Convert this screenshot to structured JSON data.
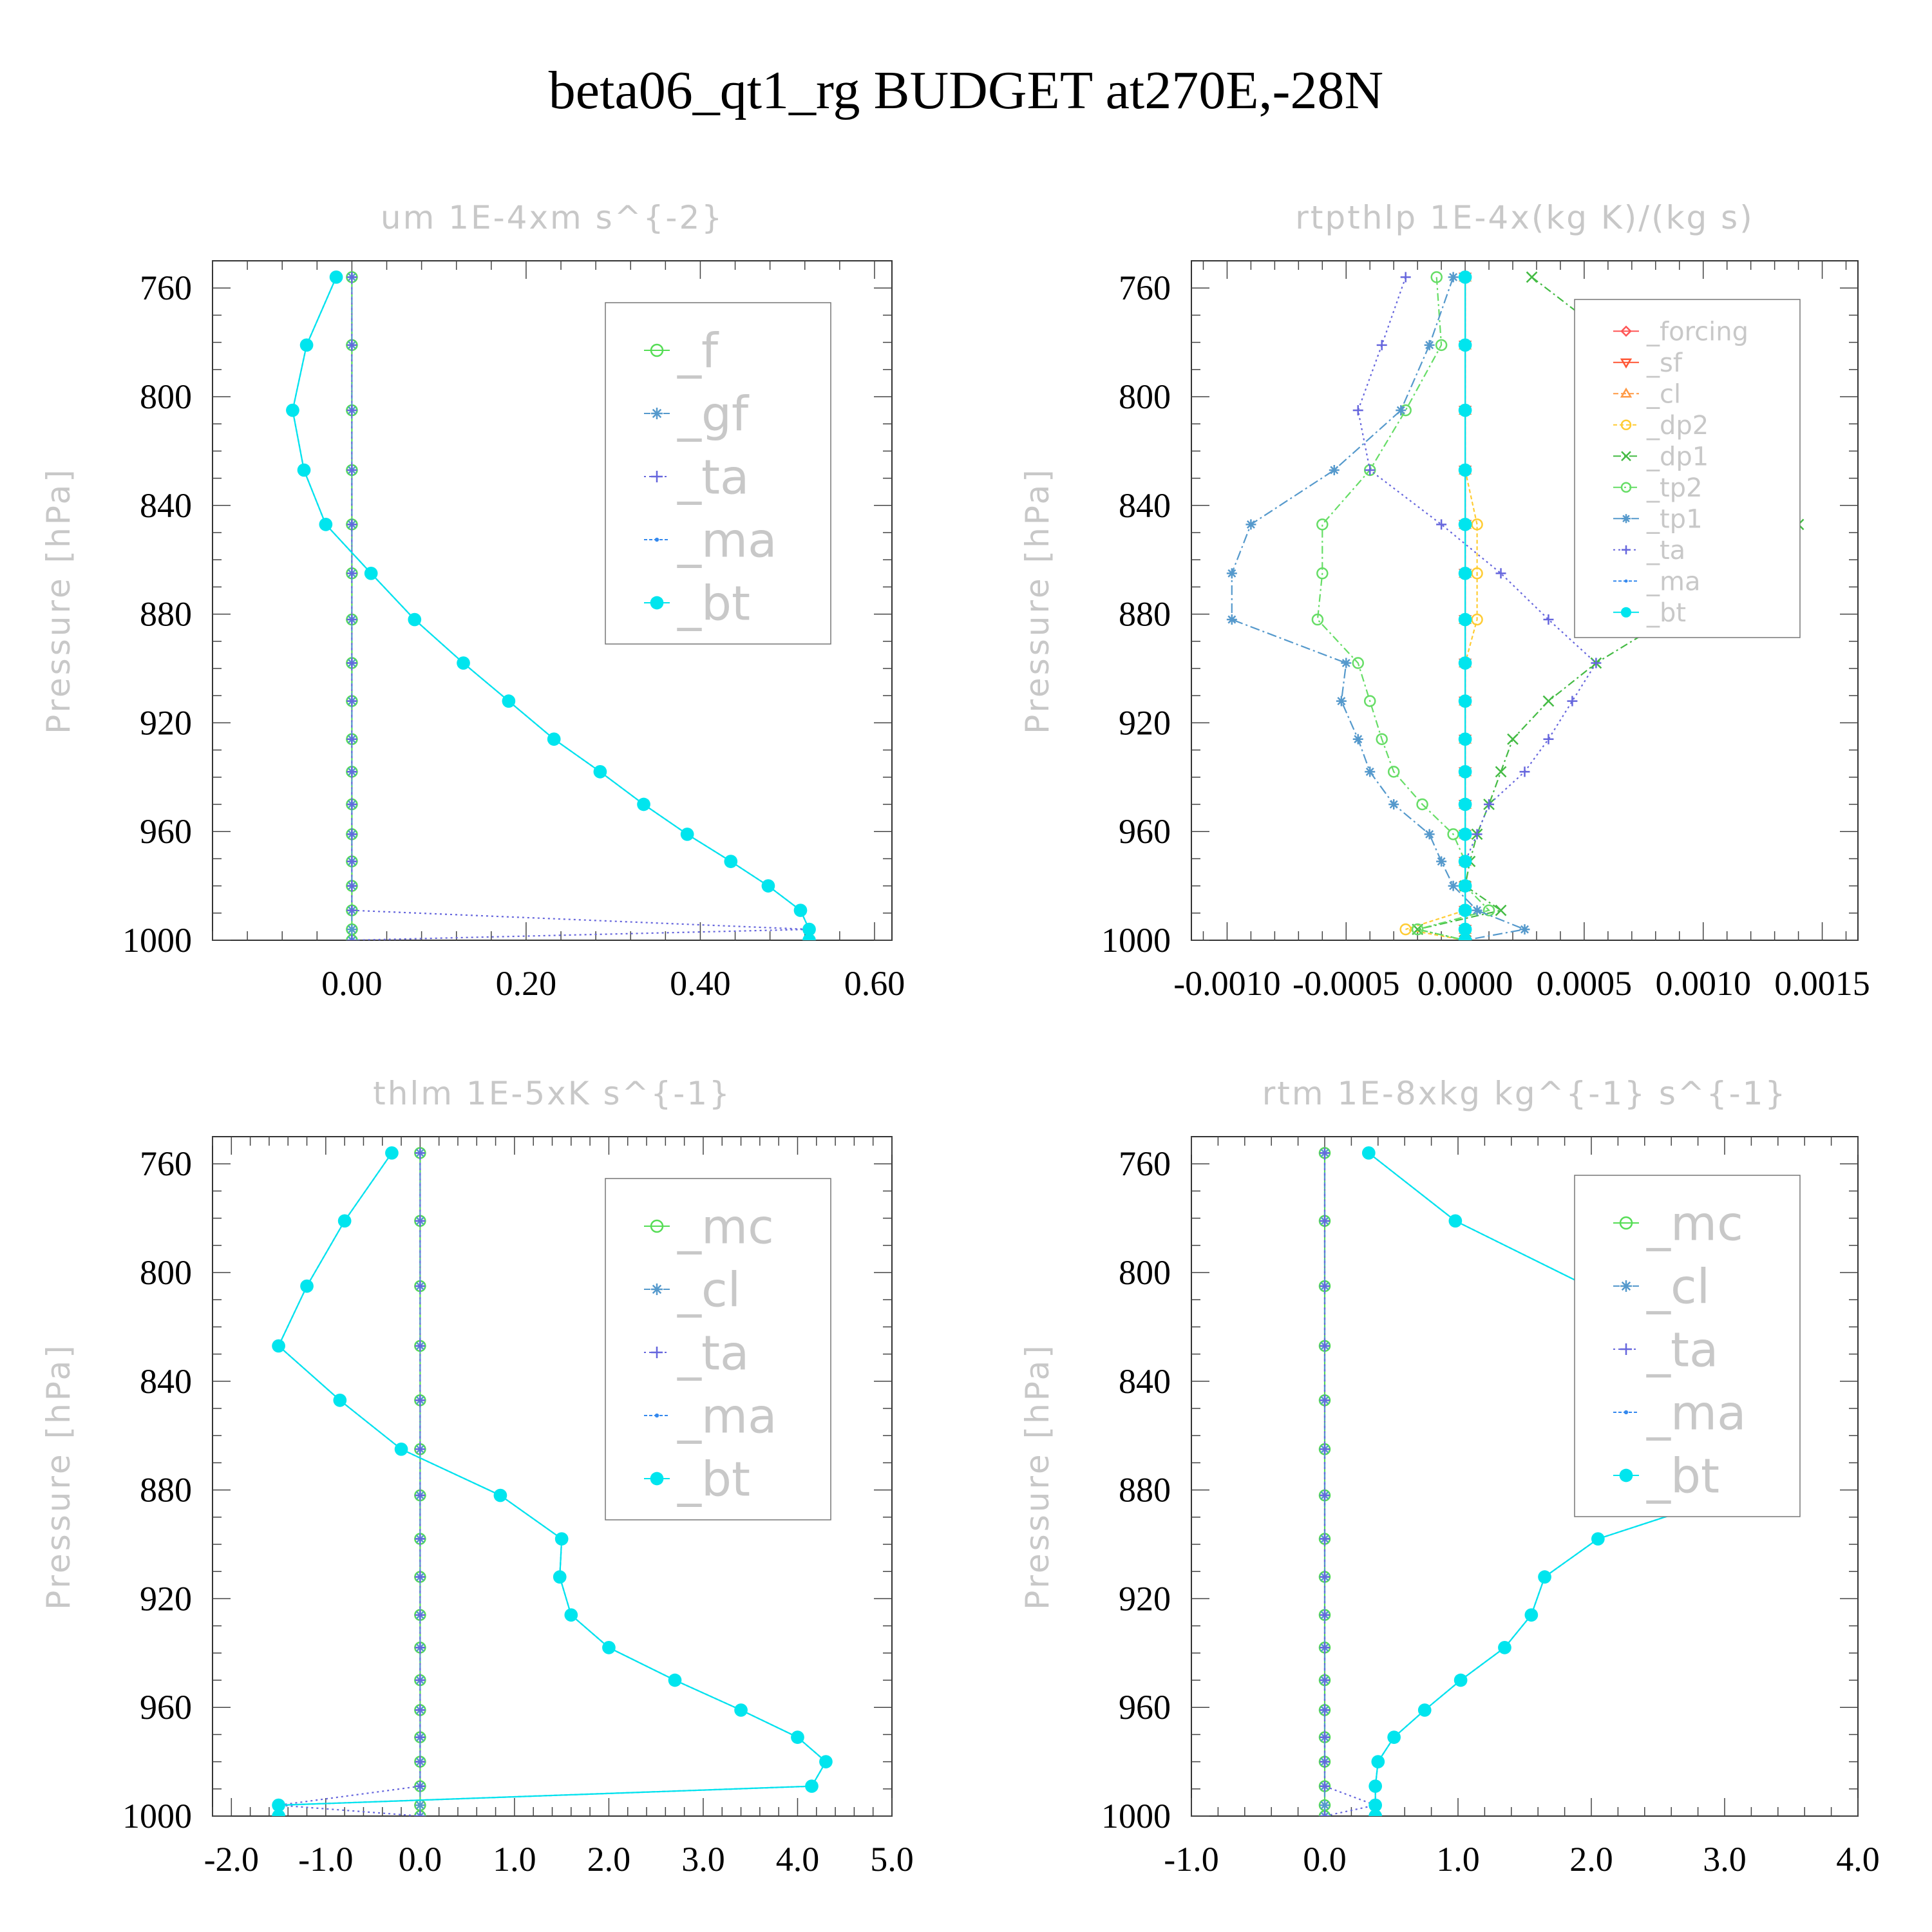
{
  "page_title": "beta06_qt1_rg  BUDGET at270E,-28N",
  "chart_data": [
    {
      "type": "line",
      "title": "um   1E-4xm s^{-2}",
      "ylabel": "Pressure [hPa]",
      "xlim": [
        -0.16,
        0.62
      ],
      "ylim": [
        1000,
        750
      ],
      "xticks": [
        0.0,
        0.2,
        0.4,
        0.6
      ],
      "xtick_labels": [
        "0.00",
        "0.20",
        "0.40",
        "0.60"
      ],
      "yticks": [
        760,
        800,
        840,
        880,
        920,
        960,
        1000
      ],
      "legend_position": "top-right",
      "pressure": [
        756,
        781,
        805,
        827,
        847,
        865,
        882,
        898,
        912,
        926,
        938,
        950,
        961,
        971,
        980,
        989,
        996,
        1000
      ],
      "series": [
        {
          "name": "_f",
          "color": "#55dd55",
          "marker": "circle-open",
          "dash": "none",
          "values": [
            0,
            0,
            0,
            0,
            0,
            0,
            0,
            0,
            0,
            0,
            0,
            0,
            0,
            0,
            0,
            0,
            0,
            0
          ]
        },
        {
          "name": "_gf",
          "color": "#5599cc",
          "marker": "star",
          "dash": "10,5",
          "values": [
            0,
            0,
            0,
            0,
            0,
            0,
            0,
            0,
            0,
            0,
            0,
            0,
            0,
            0,
            0,
            0,
            0,
            0
          ]
        },
        {
          "name": "_ta",
          "color": "#6666dd",
          "marker": "plus",
          "dash": "3,5",
          "values": [
            0,
            0,
            0,
            0,
            0,
            0,
            0,
            0,
            0,
            0,
            0,
            0,
            0,
            0,
            0,
            0,
            0.525,
            0
          ]
        },
        {
          "name": "_ma",
          "color": "#3388ee",
          "marker": "dot",
          "dash": "5,3",
          "values": [
            -0.018,
            -0.052,
            -0.068,
            -0.055,
            -0.03,
            0.022,
            0.072,
            0.128,
            0.18,
            0.232,
            0.285,
            0.335,
            0.385,
            0.435,
            0.478,
            0.515,
            0.525,
            0.525
          ]
        },
        {
          "name": "_bt",
          "color": "#00e5ee",
          "marker": "disc",
          "dash": "none",
          "values": [
            -0.018,
            -0.052,
            -0.068,
            -0.055,
            -0.03,
            0.022,
            0.072,
            0.128,
            0.18,
            0.232,
            0.285,
            0.335,
            0.385,
            0.435,
            0.478,
            0.515,
            0.525,
            0.525
          ]
        }
      ]
    },
    {
      "type": "line",
      "title": "rtpthlp   1E-4x(kg K)/(kg s)",
      "ylabel": "Pressure [hPa]",
      "xlim": [
        -0.00115,
        0.00165
      ],
      "ylim": [
        1000,
        750
      ],
      "xticks": [
        -0.001,
        -0.0005,
        0.0,
        0.0005,
        0.001,
        0.0015
      ],
      "xtick_labels": [
        "-0.0010",
        "-0.0005",
        "0.0000",
        "0.0005",
        "0.0010",
        "0.0015"
      ],
      "yticks": [
        760,
        800,
        840,
        880,
        920,
        960,
        1000
      ],
      "legend_position": "top-right",
      "pressure": [
        756,
        781,
        805,
        827,
        847,
        865,
        882,
        898,
        912,
        926,
        938,
        950,
        961,
        971,
        980,
        989,
        996,
        1000
      ],
      "series": [
        {
          "name": "_forcing",
          "color": "#ff5555",
          "marker": "diamond",
          "dash": "none",
          "values": [
            0,
            0,
            0,
            0,
            0,
            0,
            0,
            0,
            0,
            0,
            0,
            0,
            0,
            0,
            0,
            0,
            0,
            0
          ]
        },
        {
          "name": "_sf",
          "color": "#ff5533",
          "marker": "triangle-down",
          "dash": "none",
          "values": [
            0,
            0,
            0,
            0,
            0,
            0,
            0,
            0,
            0,
            0,
            0,
            0,
            0,
            0,
            0,
            0,
            0,
            0
          ]
        },
        {
          "name": "_cl",
          "color": "#ff9944",
          "marker": "triangle-up",
          "dash": "8,4",
          "values": [
            0,
            0,
            0,
            0,
            0,
            0,
            0,
            0,
            0,
            0,
            0,
            0,
            0,
            0,
            0,
            0,
            0,
            0
          ]
        },
        {
          "name": "_dp2",
          "color": "#ffcc33",
          "marker": "circle-open",
          "dash": "6,4",
          "values": [
            0,
            0,
            0,
            0,
            5e-05,
            5e-05,
            5e-05,
            0,
            0,
            0,
            0,
            0,
            0,
            0,
            0,
            0,
            -0.00025,
            0
          ]
        },
        {
          "name": "_dp1",
          "color": "#44bb44",
          "marker": "x",
          "dash": "12,5,3,5",
          "values": [
            0.00028,
            0.00065,
            0.00095,
            0.00125,
            0.0014,
            0.00125,
            0.00085,
            0.00055,
            0.00035,
            0.0002,
            0.00015,
            0.0001,
            5e-05,
            2e-05,
            0,
            0.00015,
            -0.0002,
            0
          ]
        },
        {
          "name": "_tp2",
          "color": "#66dd66",
          "marker": "circle-open",
          "dash": "12,5,3,5",
          "values": [
            -0.00012,
            -0.0001,
            -0.00025,
            -0.0004,
            -0.0006,
            -0.0006,
            -0.00062,
            -0.00045,
            -0.0004,
            -0.00035,
            -0.0003,
            -0.00018,
            -5e-05,
            0,
            0,
            0.0001,
            -0.0002,
            0
          ]
        },
        {
          "name": "_tp1",
          "color": "#5599cc",
          "marker": "star",
          "dash": "15,5,3,5",
          "values": [
            -5e-05,
            -0.00015,
            -0.00027,
            -0.00055,
            -0.0009,
            -0.00098,
            -0.00098,
            -0.0005,
            -0.00052,
            -0.00045,
            -0.0004,
            -0.0003,
            -0.00015,
            -0.0001,
            -5e-05,
            5e-05,
            0.00025,
            0
          ]
        },
        {
          "name": "_ta",
          "color": "#6666dd",
          "marker": "plus",
          "dash": "3,5",
          "values": [
            -0.00025,
            -0.00035,
            -0.00045,
            -0.0004,
            -0.0001,
            0.00015,
            0.00035,
            0.00055,
            0.00045,
            0.00035,
            0.00025,
            0.0001,
            5e-05,
            0,
            0,
            0,
            0,
            0
          ]
        },
        {
          "name": "_ma",
          "color": "#3388ee",
          "marker": "dot",
          "dash": "5,3",
          "values": [
            0,
            0,
            0,
            0,
            0,
            0,
            0,
            0,
            0,
            0,
            0,
            0,
            0,
            0,
            0,
            0,
            0,
            0
          ]
        },
        {
          "name": "_bt",
          "color": "#00e5ee",
          "marker": "disc",
          "dash": "none",
          "values": [
            0,
            0,
            0,
            0,
            0,
            0,
            0,
            0,
            0,
            0,
            0,
            0,
            0,
            0,
            0,
            0,
            0,
            0
          ]
        }
      ]
    },
    {
      "type": "line",
      "title": "thlm   1E-5xK s^{-1}",
      "ylabel": "Pressure [hPa]",
      "xlim": [
        -2.2,
        5.0
      ],
      "ylim": [
        1000,
        750
      ],
      "xticks": [
        -2.0,
        -1.0,
        0.0,
        1.0,
        2.0,
        3.0,
        4.0,
        5.0
      ],
      "xtick_labels": [
        "-2.0",
        "-1.0",
        "0.0",
        "1.0",
        "2.0",
        "3.0",
        "4.0",
        "5.0"
      ],
      "yticks": [
        760,
        800,
        840,
        880,
        920,
        960,
        1000
      ],
      "legend_position": "top-right",
      "pressure": [
        756,
        781,
        805,
        827,
        847,
        865,
        882,
        898,
        912,
        926,
        938,
        950,
        961,
        971,
        980,
        989,
        996,
        1000
      ],
      "series": [
        {
          "name": "_mc",
          "color": "#55dd55",
          "marker": "circle-open",
          "dash": "none",
          "values": [
            0,
            0,
            0,
            0,
            0,
            0,
            0,
            0,
            0,
            0,
            0,
            0,
            0,
            0,
            0,
            0,
            0,
            0
          ]
        },
        {
          "name": "_cl",
          "color": "#5599cc",
          "marker": "star",
          "dash": "10,5",
          "values": [
            0,
            0,
            0,
            0,
            0,
            0,
            0,
            0,
            0,
            0,
            0,
            0,
            0,
            0,
            0,
            0,
            0,
            0
          ]
        },
        {
          "name": "_ta",
          "color": "#6666dd",
          "marker": "plus",
          "dash": "3,5",
          "values": [
            0,
            0,
            0,
            0,
            0,
            0,
            0,
            0,
            0,
            0,
            0,
            0,
            0,
            0,
            0,
            0,
            -1.5,
            0
          ]
        },
        {
          "name": "_ma",
          "color": "#3388ee",
          "marker": "dot",
          "dash": "5,3",
          "values": [
            -0.3,
            -0.8,
            -1.2,
            -1.5,
            -0.85,
            -0.2,
            0.85,
            1.5,
            1.48,
            1.6,
            2.0,
            2.7,
            3.4,
            4.0,
            4.3,
            4.15,
            -1.5,
            -1.5
          ]
        },
        {
          "name": "_bt",
          "color": "#00e5ee",
          "marker": "disc",
          "dash": "none",
          "values": [
            -0.3,
            -0.8,
            -1.2,
            -1.5,
            -0.85,
            -0.2,
            0.85,
            1.5,
            1.48,
            1.6,
            2.0,
            2.7,
            3.4,
            4.0,
            4.3,
            4.15,
            -1.5,
            -1.5
          ]
        }
      ]
    },
    {
      "type": "line",
      "title": "rtm   1E-8xkg kg^{-1} s^{-1}",
      "ylabel": "Pressure [hPa]",
      "xlim": [
        -1.0,
        4.0
      ],
      "ylim": [
        1000,
        750
      ],
      "xticks": [
        -1.0,
        0.0,
        1.0,
        2.0,
        3.0,
        4.0
      ],
      "xtick_labels": [
        "-1.0",
        "0.0",
        "1.0",
        "2.0",
        "3.0",
        "4.0"
      ],
      "yticks": [
        760,
        800,
        840,
        880,
        920,
        960,
        1000
      ],
      "legend_position": "top-right",
      "pressure": [
        756,
        781,
        805,
        827,
        847,
        865,
        882,
        898,
        912,
        926,
        938,
        950,
        961,
        971,
        980,
        989,
        996,
        1000
      ],
      "series": [
        {
          "name": "_mc",
          "color": "#55dd55",
          "marker": "circle-open",
          "dash": "none",
          "values": [
            0,
            0,
            0,
            0,
            0,
            0,
            0,
            0,
            0,
            0,
            0,
            0,
            0,
            0,
            0,
            0,
            0,
            0
          ]
        },
        {
          "name": "_cl",
          "color": "#5599cc",
          "marker": "star",
          "dash": "10,5",
          "values": [
            0,
            0,
            0,
            0,
            0,
            0,
            0,
            0,
            0,
            0,
            0,
            0,
            0,
            0,
            0,
            0,
            0,
            0
          ]
        },
        {
          "name": "_ta",
          "color": "#6666dd",
          "marker": "plus",
          "dash": "3,5",
          "values": [
            0,
            0,
            0,
            0,
            0,
            0,
            0,
            0,
            0,
            0,
            0,
            0,
            0,
            0,
            0,
            0,
            0.38,
            0
          ]
        },
        {
          "name": "_ma",
          "color": "#3388ee",
          "marker": "dot",
          "dash": "5,3",
          "values": [
            0.33,
            0.98,
            1.97,
            2.75,
            3.33,
            3.35,
            3.05,
            2.05,
            1.65,
            1.55,
            1.35,
            1.02,
            0.75,
            0.52,
            0.4,
            0.38,
            0.38,
            0.38
          ]
        },
        {
          "name": "_bt",
          "color": "#00e5ee",
          "marker": "disc",
          "dash": "none",
          "values": [
            0.33,
            0.98,
            1.97,
            2.75,
            3.33,
            3.35,
            3.05,
            2.05,
            1.65,
            1.55,
            1.35,
            1.02,
            0.75,
            0.52,
            0.4,
            0.38,
            0.38,
            0.38
          ]
        }
      ]
    }
  ]
}
